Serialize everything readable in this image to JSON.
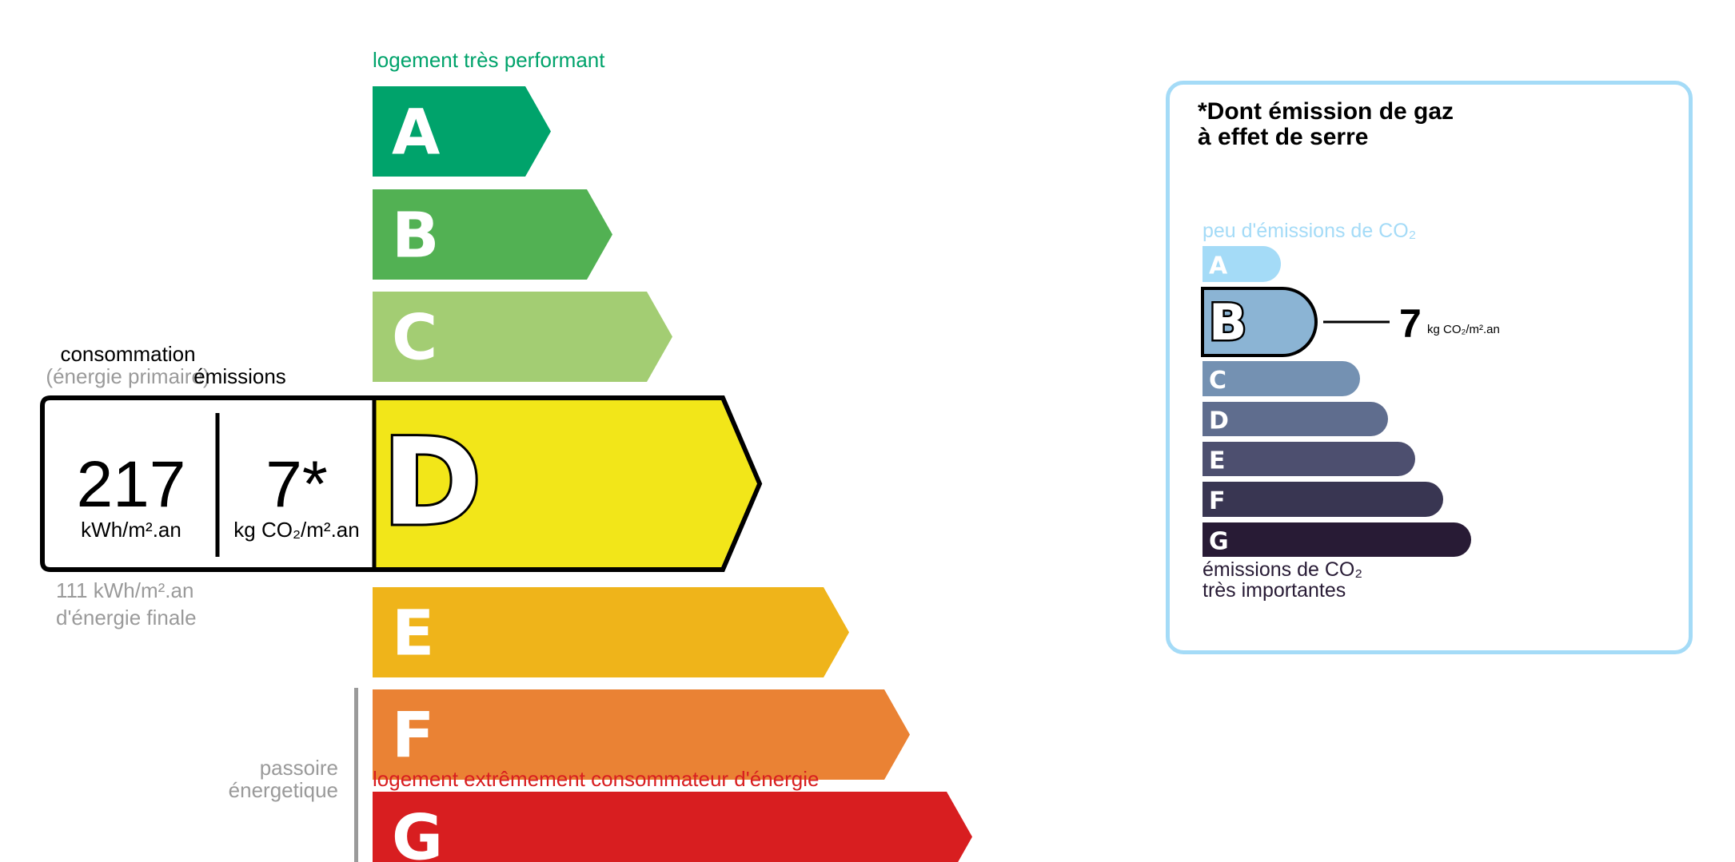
{
  "energy": {
    "top_label": "logement très performant",
    "bottom_label": "logement extrêmement consommateur d'énergie",
    "classes": [
      {
        "letter": "A",
        "color": "#00a36b"
      },
      {
        "letter": "B",
        "color": "#52b153"
      },
      {
        "letter": "C",
        "color": "#a3cd73"
      },
      {
        "letter": "D",
        "color": "#f2e619"
      },
      {
        "letter": "E",
        "color": "#efb41a"
      },
      {
        "letter": "F",
        "color": "#ea8234"
      },
      {
        "letter": "G",
        "color": "#d81e20"
      }
    ],
    "current_class": "D",
    "consumption_label": "consommation",
    "consumption_sub": "(énergie primaire)",
    "emissions_label": "émissions",
    "consumption_value": "217",
    "consumption_unit": "kWh/m².an",
    "emissions_value": "7*",
    "emissions_unit": "kg CO₂/m².an",
    "final_value": "111 kWh/m².an",
    "final_label": "d'énergie finale",
    "passoire_line1": "passoire",
    "passoire_line2": "énergetique"
  },
  "ges": {
    "title_line1": "*Dont émission de gaz",
    "title_line2": "à effet de serre",
    "top_label": "peu d'émissions de CO₂",
    "bottom_line1": "émissions de CO₂",
    "bottom_line2": "très importantes",
    "classes": [
      {
        "letter": "A",
        "color": "#a4dbf7"
      },
      {
        "letter": "B",
        "color": "#8bb4d4"
      },
      {
        "letter": "C",
        "color": "#7491b2"
      },
      {
        "letter": "D",
        "color": "#5f6d8e"
      },
      {
        "letter": "E",
        "color": "#4d4f6f"
      },
      {
        "letter": "F",
        "color": "#393652"
      },
      {
        "letter": "G",
        "color": "#281b35"
      }
    ],
    "current_class": "B",
    "value": "7",
    "unit": "kg CO₂/m².an"
  }
}
